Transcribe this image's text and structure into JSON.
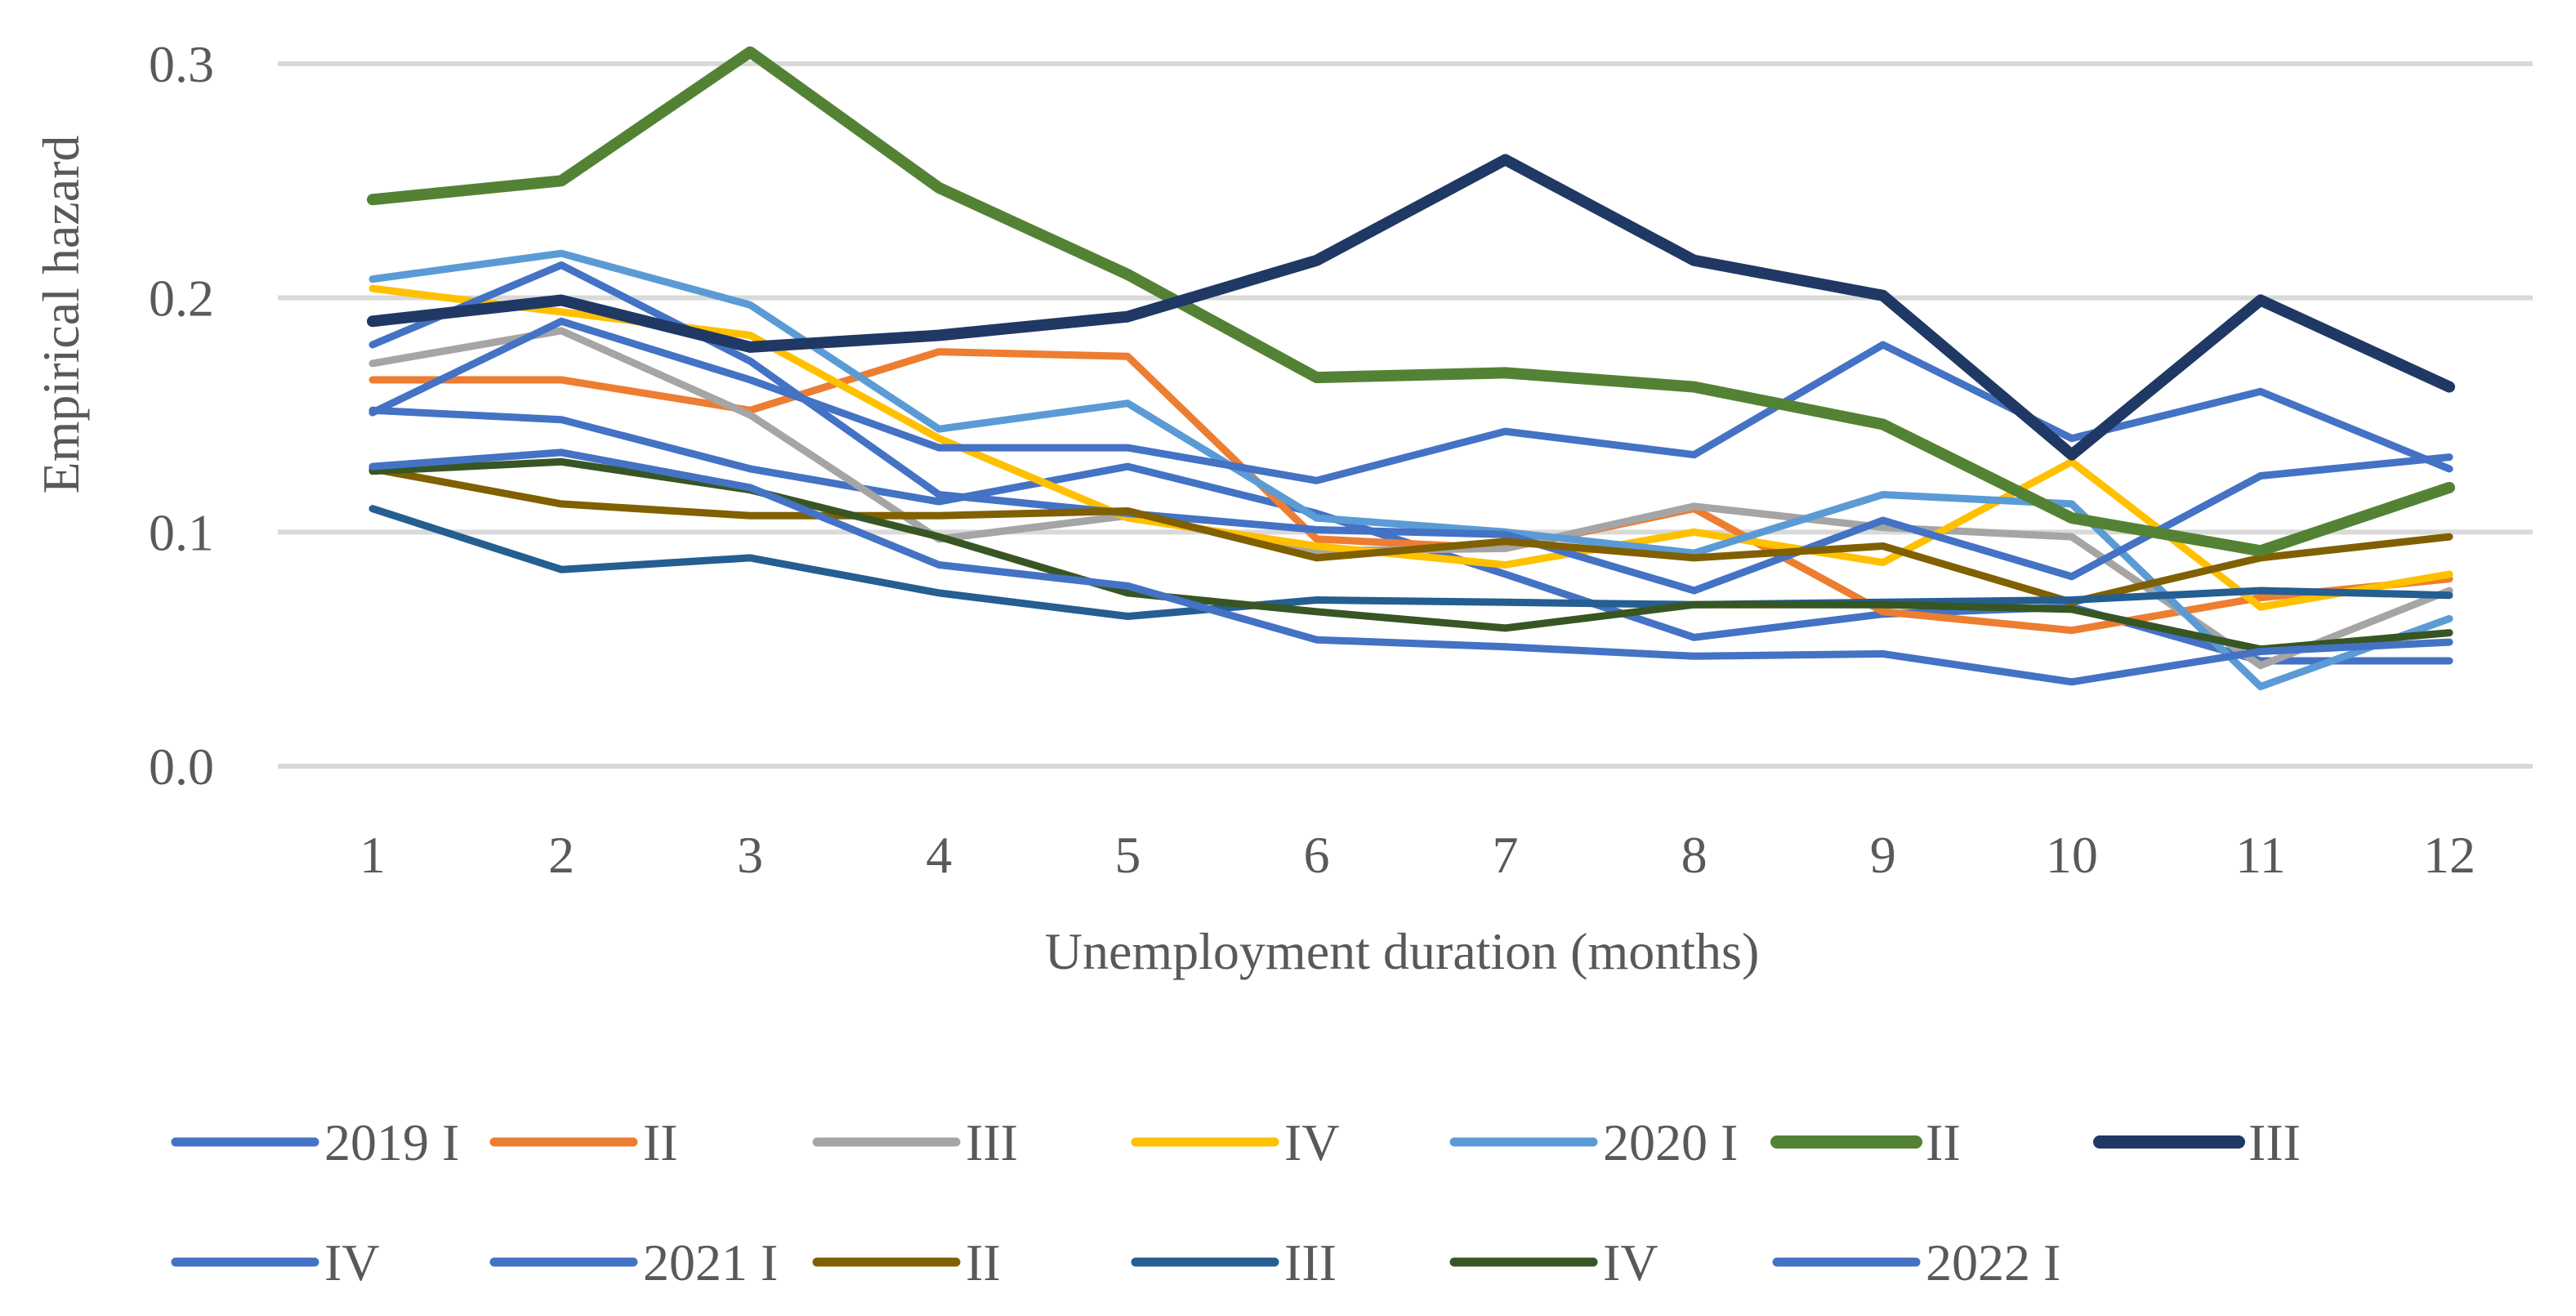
{
  "chart_data": {
    "type": "line",
    "title": "",
    "xlabel": "Unemployment duration (months)",
    "ylabel": "Empirical hazard",
    "categories": [
      "1",
      "2",
      "3",
      "4",
      "5",
      "6",
      "7",
      "8",
      "9",
      "10",
      "11",
      "12"
    ],
    "ylim": [
      0,
      0.3
    ],
    "yticks": [
      {
        "value": 0.0,
        "label": "0.0"
      },
      {
        "value": 0.1,
        "label": "0.1"
      },
      {
        "value": 0.2,
        "label": "0.2"
      },
      {
        "value": 0.3,
        "label": "0.3"
      }
    ],
    "grid": true,
    "legend_position": "bottom",
    "series": [
      {
        "name": "2019 I",
        "color": "#4472c4",
        "bold": false,
        "values": [
          0.152,
          0.148,
          0.127,
          0.113,
          0.128,
          0.108,
          0.082,
          0.055,
          0.065,
          0.068,
          0.045,
          0.045
        ]
      },
      {
        "name": "II",
        "color": "#ed7d31",
        "bold": false,
        "values": [
          0.165,
          0.165,
          0.152,
          0.177,
          0.175,
          0.097,
          0.093,
          0.11,
          0.066,
          0.058,
          0.072,
          0.08
        ]
      },
      {
        "name": "III",
        "color": "#a5a5a5",
        "bold": false,
        "values": [
          0.172,
          0.186,
          0.15,
          0.097,
          0.107,
          0.092,
          0.093,
          0.111,
          0.102,
          0.098,
          0.043,
          0.075
        ]
      },
      {
        "name": "IV",
        "color": "#ffc000",
        "bold": false,
        "values": [
          0.204,
          0.194,
          0.184,
          0.14,
          0.106,
          0.094,
          0.086,
          0.1,
          0.087,
          0.13,
          0.068,
          0.082
        ]
      },
      {
        "name": "2020 I",
        "color": "#5b9bd5",
        "bold": false,
        "values": [
          0.208,
          0.219,
          0.197,
          0.144,
          0.155,
          0.106,
          0.1,
          0.091,
          0.116,
          0.112,
          0.034,
          0.063
        ]
      },
      {
        "name": "II",
        "color": "#548235",
        "bold": true,
        "values": [
          0.242,
          0.25,
          0.305,
          0.247,
          0.21,
          0.166,
          0.168,
          0.162,
          0.146,
          0.106,
          0.092,
          0.119
        ]
      },
      {
        "name": "III",
        "color": "#203864",
        "bold": true,
        "values": [
          0.19,
          0.199,
          0.179,
          0.184,
          0.192,
          0.216,
          0.259,
          0.216,
          0.201,
          0.133,
          0.199,
          0.162
        ]
      },
      {
        "name": "IV",
        "color": "#4472c4",
        "bold": false,
        "values": [
          0.18,
          0.214,
          0.173,
          0.116,
          0.108,
          0.101,
          0.099,
          0.075,
          0.105,
          0.081,
          0.124,
          0.132
        ]
      },
      {
        "name": "2021 I",
        "color": "#4472c4",
        "bold": false,
        "values": [
          0.151,
          0.19,
          0.165,
          0.136,
          0.136,
          0.122,
          0.143,
          0.133,
          0.18,
          0.14,
          0.16,
          0.127
        ]
      },
      {
        "name": "II",
        "color": "#806000",
        "bold": false,
        "values": [
          0.127,
          0.112,
          0.107,
          0.107,
          0.109,
          0.089,
          0.096,
          0.089,
          0.094,
          0.07,
          0.089,
          0.098
        ]
      },
      {
        "name": "III",
        "color": "#255e91",
        "bold": false,
        "values": [
          0.11,
          0.084,
          0.089,
          0.074,
          0.064,
          0.071,
          0.07,
          0.069,
          0.07,
          0.071,
          0.075,
          0.073
        ]
      },
      {
        "name": "IV",
        "color": "#375623",
        "bold": false,
        "values": [
          0.126,
          0.13,
          0.118,
          0.098,
          0.074,
          0.066,
          0.059,
          0.069,
          0.069,
          0.067,
          0.05,
          0.057
        ]
      },
      {
        "name": "2022 I",
        "color": "#4472c4",
        "bold": false,
        "values": [
          0.128,
          0.134,
          0.119,
          0.086,
          0.077,
          0.054,
          0.051,
          0.047,
          0.048,
          0.036,
          0.049,
          0.053
        ]
      }
    ]
  }
}
